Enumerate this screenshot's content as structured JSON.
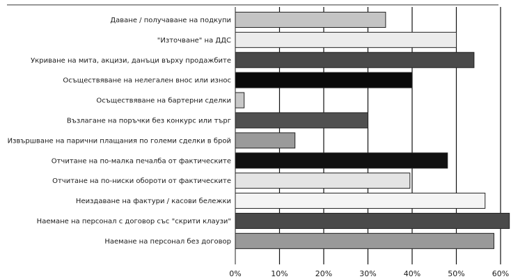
{
  "chart_data": {
    "type": "bar",
    "orientation": "horizontal",
    "title": "",
    "xlabel": "",
    "ylabel": "",
    "xlim": [
      0,
      62
    ],
    "ticks": [
      "0%",
      "10%",
      "20%",
      "30%",
      "40%",
      "50%",
      "60%"
    ],
    "tick_values": [
      0,
      10,
      20,
      30,
      40,
      50,
      60
    ],
    "grid": true,
    "categories": [
      "Даване / получаване на подкупи",
      "\"Източване\" на ДДС",
      "Укриване на мита, акцизи, данъци върху продажбите",
      "Осъществяване на нелегален внос или износ",
      "Осъществяване на бартерни сделки",
      "Възлагане на поръчки без конкурс или търг",
      "Извършване на парични плащания по големи сделки в брой",
      "Отчитане на по-малка печалба от фактическите",
      "Отчитане на по-ниски обороти от фактическите",
      "Неиздаване на фактури / касови бележки",
      "Наемане на персонал с договор със \"скрити клаузи\"",
      "Наемане на персонал без договор"
    ],
    "values": [
      34,
      50,
      54,
      40,
      2,
      30,
      13.5,
      48,
      39.5,
      56.5,
      62,
      58.5
    ],
    "bar_colors": [
      "#c4c4c4",
      "#ececec",
      "#4a4a4a",
      "#0a0a0a",
      "#c8c8c8",
      "#505050",
      "#9a9a9a",
      "#111111",
      "#e4e4e4",
      "#f4f4f4",
      "#4a4a4a",
      "#999999"
    ]
  }
}
